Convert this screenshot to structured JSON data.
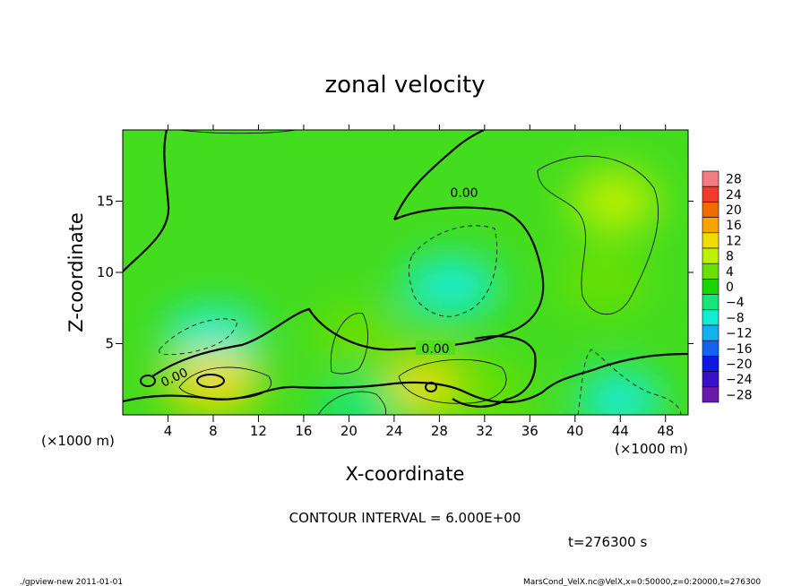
{
  "chart_data": {
    "type": "heatmap",
    "title": "zonal velocity",
    "xlabel": "X-coordinate",
    "ylabel": "Z-coordinate",
    "x_unit": "(×1000 m)",
    "y_unit": "(×1000 m)",
    "xlim": [
      0,
      50
    ],
    "ylim": [
      0,
      20
    ],
    "x_ticks": [
      4,
      8,
      12,
      16,
      20,
      24,
      28,
      32,
      36,
      40,
      44,
      48
    ],
    "y_ticks": [
      5,
      10,
      15
    ],
    "contour_interval_text": "CONTOUR INTERVAL = 6.000E+00",
    "contour_labels": [
      "0.00",
      "0.00",
      "0.00"
    ],
    "time_text": "t=276300 s",
    "colorbar": {
      "levels": [
        28,
        24,
        20,
        16,
        12,
        8,
        4,
        0,
        -4,
        -8,
        -12,
        -16,
        -20,
        -24,
        -28
      ],
      "colors": [
        "#f47a84",
        "#f03a2c",
        "#f06c00",
        "#f8a400",
        "#f0dc00",
        "#bef000",
        "#6ae000",
        "#1ad400",
        "#14e67c",
        "#14ecd2",
        "#14b0f0",
        "#1264f0",
        "#1018e0",
        "#3a10c8",
        "#6a1aa8"
      ]
    },
    "regions": [
      {
        "x": 43.5,
        "z": 15.0,
        "value": 7
      },
      {
        "x": 42.5,
        "z": 9.5,
        "value": 5
      },
      {
        "x": 29.0,
        "z": 9.0,
        "value": -8
      },
      {
        "x": 8.0,
        "z": 5.5,
        "value": -8
      },
      {
        "x": 8.0,
        "z": 2.3,
        "value": 12
      },
      {
        "x": 27.5,
        "z": 2.0,
        "value": 11
      },
      {
        "x": 21.0,
        "z": 5.5,
        "value": 5
      },
      {
        "x": 44.0,
        "z": 1.0,
        "value": -7
      },
      {
        "x": 21.0,
        "z": 0.3,
        "value": -4
      },
      {
        "x": 32.0,
        "z": 1.5,
        "value": 3
      }
    ]
  },
  "footer": {
    "left": "./gpview-new   2011-01-01",
    "right": "MarsCond_VelX.nc@VelX,x=0:50000,z=0:20000,t=276300"
  }
}
